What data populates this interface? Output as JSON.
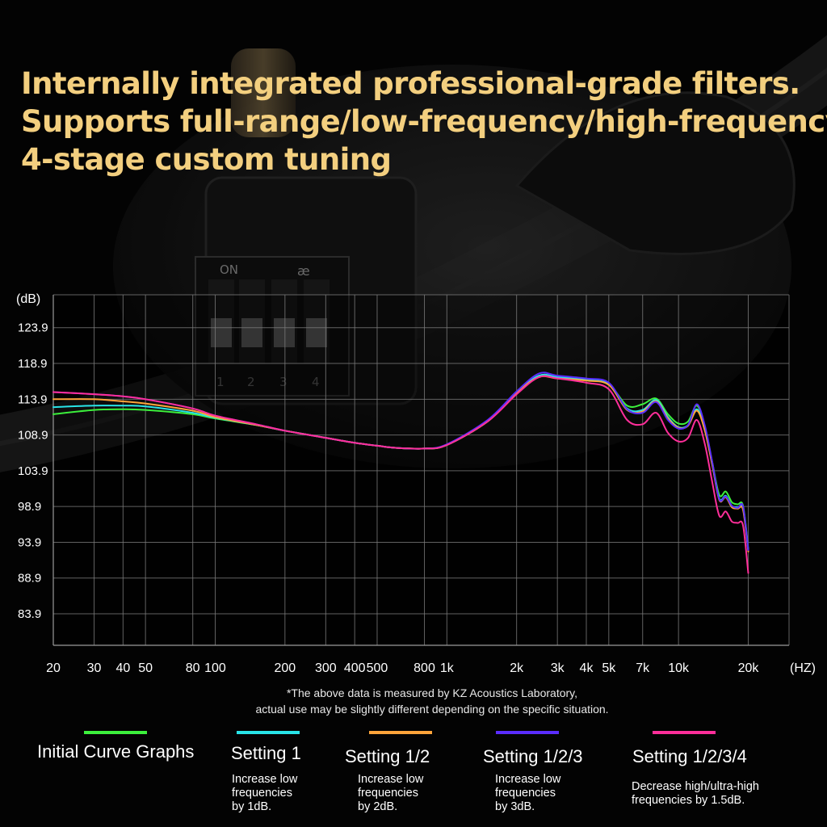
{
  "headline": [
    "Internally integrated professional-grade filters.",
    "Supports full-range/low-frequency/high-frequency",
    "4-stage custom tuning"
  ],
  "product_labels": {
    "switch_on": "ON",
    "switch_numbers": [
      "1",
      "2",
      "3",
      "4"
    ]
  },
  "chart_data": {
    "type": "line",
    "ylabel": "(dB)",
    "xlabel": "(HZ)",
    "x_scale": "log",
    "xlim": [
      20,
      30000
    ],
    "ylim": [
      79.5,
      128.5
    ],
    "grid": true,
    "y_ticks": [
      83.9,
      88.9,
      93.9,
      98.9,
      103.9,
      108.9,
      113.9,
      118.9,
      123.9
    ],
    "x_ticks": [
      {
        "value": 20,
        "label": "20"
      },
      {
        "value": 30,
        "label": "30"
      },
      {
        "value": 40,
        "label": "40"
      },
      {
        "value": 50,
        "label": "50"
      },
      {
        "value": 80,
        "label": "80"
      },
      {
        "value": 100,
        "label": "100"
      },
      {
        "value": 200,
        "label": "200"
      },
      {
        "value": 300,
        "label": "300"
      },
      {
        "value": 400,
        "label": "400"
      },
      {
        "value": 500,
        "label": "500"
      },
      {
        "value": 800,
        "label": "800"
      },
      {
        "value": 1000,
        "label": "1k"
      },
      {
        "value": 2000,
        "label": "2k"
      },
      {
        "value": 3000,
        "label": "3k"
      },
      {
        "value": 4000,
        "label": "4k"
      },
      {
        "value": 5000,
        "label": "5k"
      },
      {
        "value": 7000,
        "label": "7k"
      },
      {
        "value": 10000,
        "label": "10k"
      },
      {
        "value": 20000,
        "label": "20k"
      }
    ],
    "x": [
      20,
      30,
      40,
      50,
      80,
      100,
      150,
      200,
      300,
      400,
      500,
      600,
      800,
      1000,
      1500,
      2000,
      2500,
      3000,
      4000,
      5000,
      6000,
      7000,
      8000,
      9000,
      10000,
      11000,
      12000,
      13000,
      14000,
      15000,
      16000,
      17000,
      18000,
      19000,
      20000
    ],
    "series": [
      {
        "name": "Initial Curve Graphs",
        "color": "#3cf03c",
        "values": [
          111.8,
          112.4,
          112.5,
          112.4,
          111.8,
          111.2,
          110.3,
          109.5,
          108.5,
          107.8,
          107.4,
          107.1,
          107.0,
          107.5,
          110.8,
          114.8,
          117.2,
          117.0,
          116.6,
          116.0,
          113.0,
          113.2,
          114.0,
          111.8,
          110.5,
          110.8,
          113.0,
          110.0,
          105.0,
          100.5,
          101.0,
          99.5,
          99.2,
          99.0,
          93.0
        ]
      },
      {
        "name": "Setting 1",
        "color": "#28e4e8",
        "values": [
          112.8,
          113.0,
          113.0,
          112.9,
          112.0,
          111.3,
          110.3,
          109.5,
          108.5,
          107.8,
          107.4,
          107.1,
          107.0,
          107.5,
          110.8,
          114.8,
          117.2,
          117.0,
          116.6,
          116.0,
          112.6,
          112.4,
          113.8,
          111.4,
          110.0,
          110.3,
          112.5,
          109.6,
          104.8,
          100.0,
          100.4,
          99.0,
          98.8,
          98.6,
          92.8
        ]
      },
      {
        "name": "Setting 1/2",
        "color": "#ffa43a",
        "values": [
          113.9,
          113.9,
          113.6,
          113.3,
          112.3,
          111.4,
          110.3,
          109.5,
          108.5,
          107.8,
          107.4,
          107.1,
          107.0,
          107.5,
          110.8,
          114.8,
          117.0,
          116.8,
          116.5,
          115.9,
          112.4,
          112.2,
          113.6,
          111.2,
          109.9,
          110.2,
          112.3,
          109.5,
          104.6,
          99.8,
          100.2,
          98.8,
          98.6,
          98.4,
          92.6
        ]
      },
      {
        "name": "Setting 1/2/3",
        "color": "#5a2cff",
        "values": [
          114.9,
          114.6,
          114.3,
          113.9,
          112.6,
          111.6,
          110.4,
          109.5,
          108.5,
          107.8,
          107.4,
          107.1,
          107.0,
          107.6,
          111.0,
          115.0,
          117.5,
          117.2,
          116.8,
          116.2,
          112.5,
          112.0,
          113.5,
          111.0,
          109.8,
          110.3,
          113.2,
          110.2,
          105.0,
          99.9,
          100.3,
          99.0,
          98.7,
          98.9,
          92.8
        ]
      },
      {
        "name": "Setting 1/2/3/4",
        "color": "#ff2e9a",
        "values": [
          114.9,
          114.6,
          114.3,
          113.9,
          112.6,
          111.6,
          110.4,
          109.5,
          108.5,
          107.8,
          107.4,
          107.1,
          107.0,
          107.5,
          110.8,
          114.6,
          117.0,
          116.8,
          116.2,
          115.3,
          111.0,
          110.4,
          112.0,
          109.2,
          108.0,
          108.5,
          111.0,
          107.6,
          102.2,
          97.6,
          98.2,
          96.8,
          96.6,
          96.2,
          89.6
        ]
      }
    ]
  },
  "footnote": [
    "*The above data is measured by KZ Acoustics Laboratory,",
    "actual use may be slightly different depending on the specific situation."
  ],
  "legend": [
    {
      "title": "Initial Curve Graphs",
      "color": "#3cf03c",
      "desc": []
    },
    {
      "title": "Setting 1",
      "color": "#28e4e8",
      "desc": [
        "Increase low",
        "frequencies",
        "by 1dB."
      ]
    },
    {
      "title": "Setting 1/2",
      "color": "#ffa43a",
      "desc": [
        "Increase low",
        "frequencies",
        "by 2dB."
      ]
    },
    {
      "title": "Setting 1/2/3",
      "color": "#5a2cff",
      "desc": [
        "Increase low",
        "frequencies",
        "by 3dB."
      ]
    },
    {
      "title": "Setting 1/2/3/4",
      "color": "#ff2e9a",
      "desc": [
        "Decrease high/ultra-high",
        "frequencies by 1.5dB."
      ]
    }
  ]
}
